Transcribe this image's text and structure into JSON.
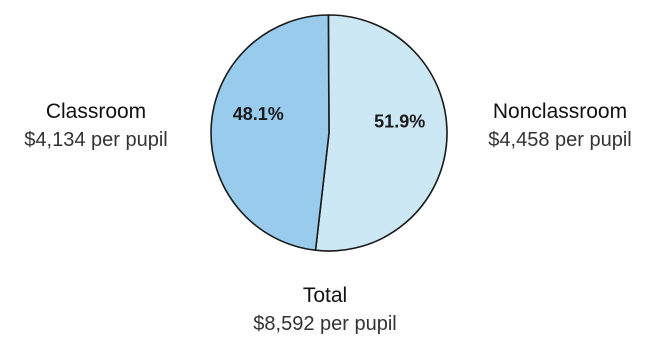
{
  "chart_data": {
    "type": "pie",
    "title": "",
    "series": [
      {
        "values": [
          51.9,
          48.1
        ]
      }
    ],
    "categories": [
      "Nonclassroom",
      "Classroom"
    ],
    "colors": [
      "#cce8f4",
      "#99cbed"
    ],
    "stroke_color": "#1a1a1a",
    "slices": [
      {
        "name": "Nonclassroom",
        "percent": 51.9,
        "percent_label": "51.9%",
        "amount_label": "$4,458 per pupil",
        "color": "#cce8f4"
      },
      {
        "name": "Classroom",
        "percent": 48.1,
        "percent_label": "48.1%",
        "amount_label": "$4,134 per pupil",
        "color": "#99cbed"
      }
    ],
    "total": {
      "name": "Total",
      "amount_label": "$8,592 per pupil"
    }
  }
}
